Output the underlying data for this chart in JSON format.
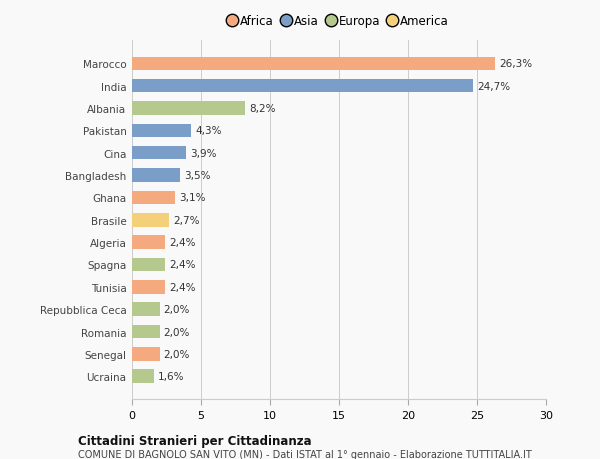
{
  "categories": [
    "Marocco",
    "India",
    "Albania",
    "Pakistan",
    "Cina",
    "Bangladesh",
    "Ghana",
    "Brasile",
    "Algeria",
    "Spagna",
    "Tunisia",
    "Repubblica Ceca",
    "Romania",
    "Senegal",
    "Ucraina"
  ],
  "values": [
    26.3,
    24.7,
    8.2,
    4.3,
    3.9,
    3.5,
    3.1,
    2.7,
    2.4,
    2.4,
    2.4,
    2.0,
    2.0,
    2.0,
    1.6
  ],
  "labels": [
    "26,3%",
    "24,7%",
    "8,2%",
    "4,3%",
    "3,9%",
    "3,5%",
    "3,1%",
    "2,7%",
    "2,4%",
    "2,4%",
    "2,4%",
    "2,0%",
    "2,0%",
    "2,0%",
    "1,6%"
  ],
  "continents": [
    "Africa",
    "Asia",
    "Europa",
    "Asia",
    "Asia",
    "Asia",
    "Africa",
    "America",
    "Africa",
    "Europa",
    "Africa",
    "Europa",
    "Europa",
    "Africa",
    "Europa"
  ],
  "continent_colors": {
    "Africa": "#F4A97F",
    "Asia": "#7B9EC8",
    "Europa": "#B5C98E",
    "America": "#F5D07A"
  },
  "legend_order": [
    "Africa",
    "Asia",
    "Europa",
    "America"
  ],
  "xlim": [
    0,
    30
  ],
  "xticks": [
    0,
    5,
    10,
    15,
    20,
    25,
    30
  ],
  "title": "Cittadini Stranieri per Cittadinanza",
  "subtitle": "COMUNE DI BAGNOLO SAN VITO (MN) - Dati ISTAT al 1° gennaio - Elaborazione TUTTITALIA.IT",
  "bg_color": "#f9f9f9",
  "bar_height": 0.6,
  "grid_color": "#cccccc"
}
